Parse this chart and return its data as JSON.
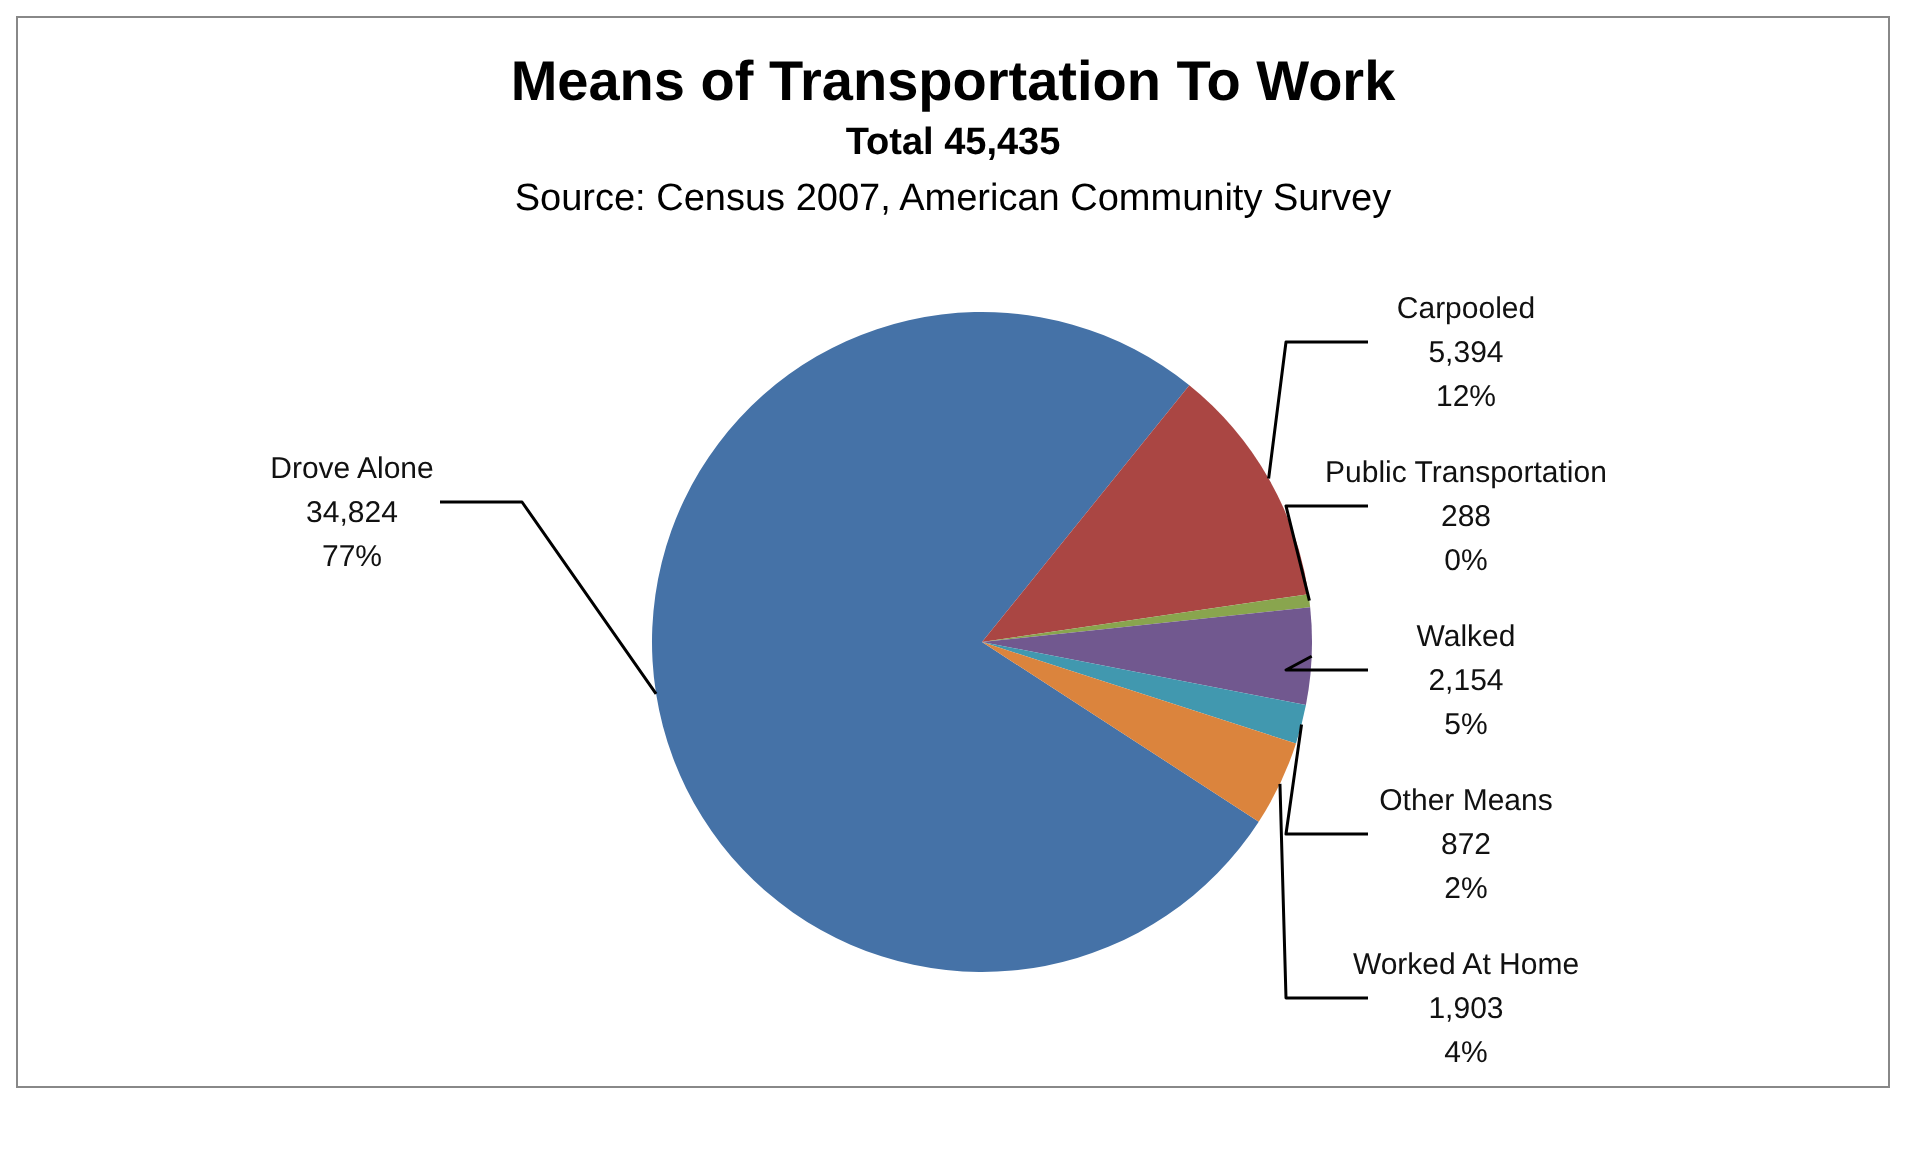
{
  "chart_data": {
    "type": "pie",
    "title": "Means of Transportation To Work",
    "subtitle": "Total 45,435",
    "annotations": [
      "Source: Census 2007, American Community Survey"
    ],
    "categories": [
      "Drove Alone",
      "Carpooled",
      "Public Transportation",
      "Walked",
      "Other Means",
      "Worked At Home"
    ],
    "values": [
      34824,
      5394,
      288,
      2154,
      872,
      1903
    ],
    "colors": [
      "#4572a7",
      "#aa4643",
      "#89a54e",
      "#71588f",
      "#4198af",
      "#db843d"
    ],
    "value_labels": [
      "34,824\n77%",
      "5,394\n12%",
      "288\n0%",
      "2,154\n5%",
      "872\n2%",
      "1,903\n4%"
    ],
    "legend": false
  }
}
